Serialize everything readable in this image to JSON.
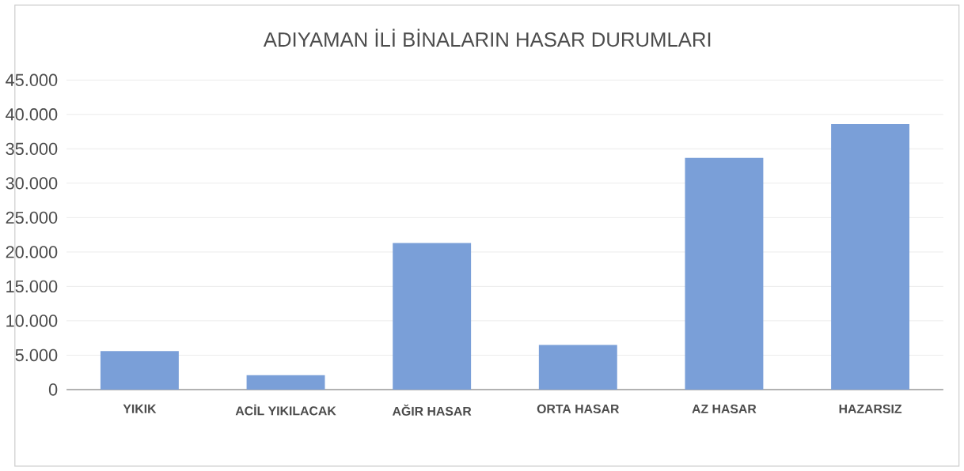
{
  "chart_data": {
    "type": "bar",
    "title": "ADIYAMAN İLİ BİNALARIN HASAR DURUMLARI",
    "categories": [
      "YIKIK",
      "ACİL YIKILACAK",
      "AĞIR HASAR",
      "ORTA HASAR",
      "AZ HASAR",
      "HAZARSIZ"
    ],
    "values": [
      5600,
      2100,
      21300,
      6500,
      33700,
      38600
    ],
    "color": "#7a9fd8",
    "ylim": [
      0,
      45000
    ],
    "yticks": [
      {
        "value": 0,
        "label": "0"
      },
      {
        "value": 5000,
        "label": "5.000"
      },
      {
        "value": 10000,
        "label": "10.000"
      },
      {
        "value": 15000,
        "label": "15.000"
      },
      {
        "value": 20000,
        "label": "20.000"
      },
      {
        "value": 25000,
        "label": "25.000"
      },
      {
        "value": 30000,
        "label": "30.000"
      },
      {
        "value": 35000,
        "label": "35.000"
      },
      {
        "value": 40000,
        "label": "40.000"
      },
      {
        "value": 45000,
        "label": "45.000"
      }
    ],
    "grid": "y"
  }
}
